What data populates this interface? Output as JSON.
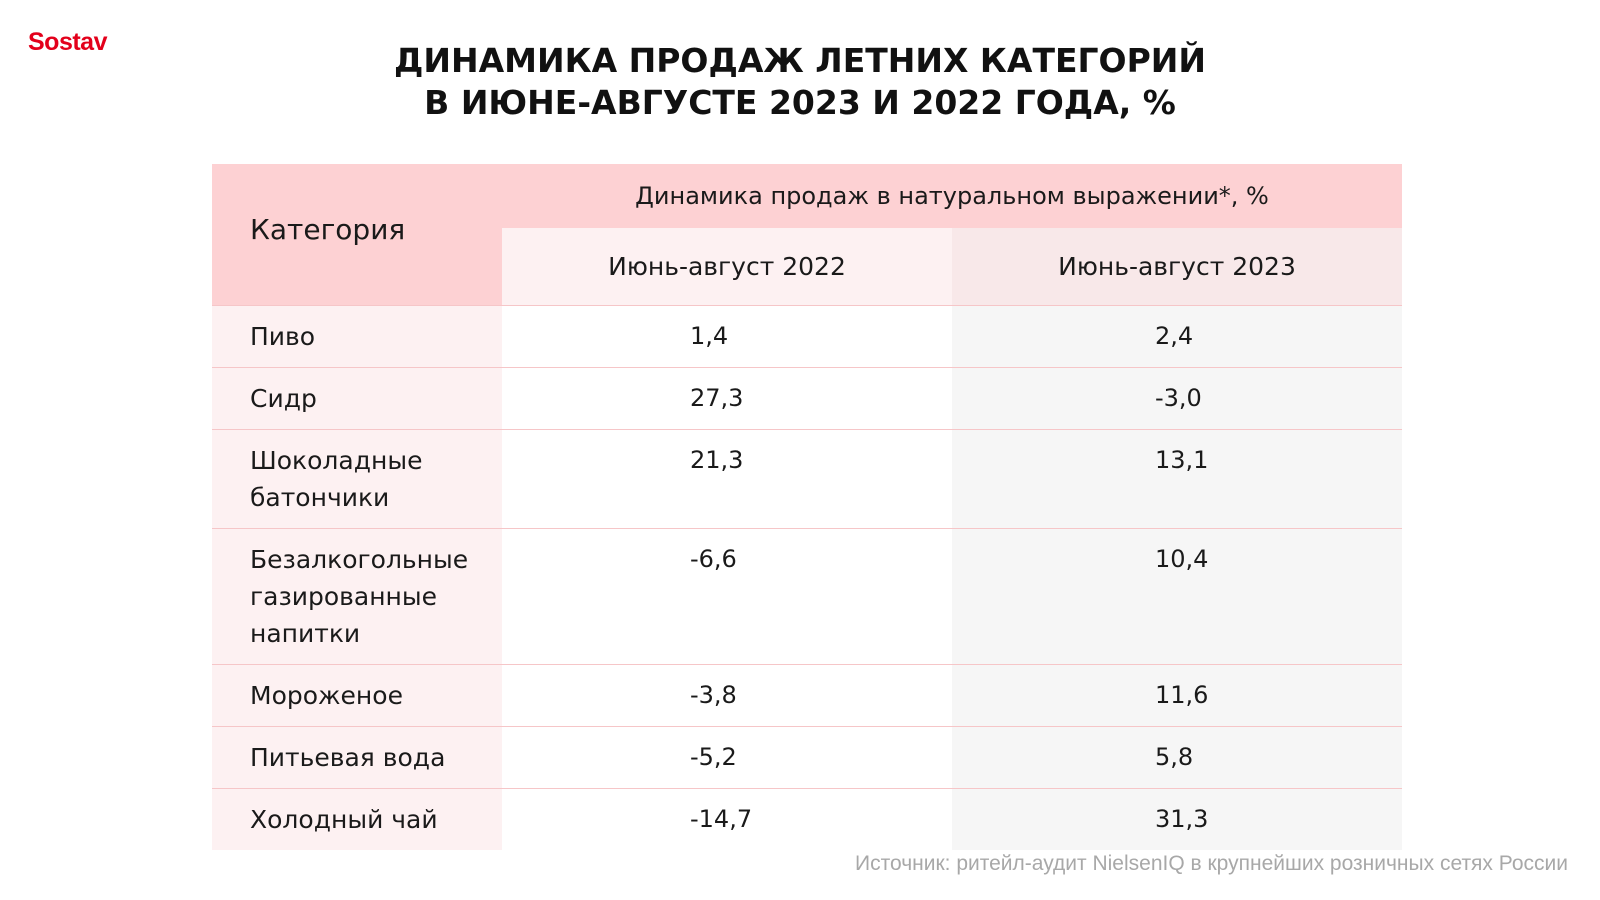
{
  "brand": {
    "logo_text": "Sostav",
    "color": "#e3001b"
  },
  "title": {
    "line1": "Динамика продаж летних категорий",
    "line2": "в июне-августе 2023 и 2022 года, %"
  },
  "chart_data": {
    "type": "table",
    "title": "Динамика продаж летних категорий в июне-августе 2023 и 2022 года, %",
    "columns": {
      "category": "Категория",
      "group": "Динамика продаж в натуральном выражении*, %",
      "period_2022": "Июнь-август 2022",
      "period_2023": "Июнь-август 2023"
    },
    "rows": [
      {
        "category": "Пиво",
        "y2022": "1,4",
        "y2023": "2,4"
      },
      {
        "category": "Сидр",
        "y2022": "27,3",
        "y2023": "-3,0"
      },
      {
        "category": "Шоколадные батончики",
        "y2022": "21,3",
        "y2023": "13,1"
      },
      {
        "category": "Безалкогольные газированные напитки",
        "y2022": "-6,6",
        "y2023": "10,4"
      },
      {
        "category": "Мороженое",
        "y2022": "-3,8",
        "y2023": "11,6"
      },
      {
        "category": "Питьевая вода",
        "y2022": "-5,2",
        "y2023": "5,8"
      },
      {
        "category": "Холодный чай",
        "y2022": "-14,7",
        "y2023": "31,3"
      }
    ]
  },
  "source": "Источник: ритейл-аудит NielsenIQ в крупнейших розничных сетях России",
  "colors": {
    "header_pink": "#fdd1d3",
    "light_pink": "#fdf1f2",
    "grey_column": "#f6f6f6",
    "row_border": "#f6c6c8"
  }
}
